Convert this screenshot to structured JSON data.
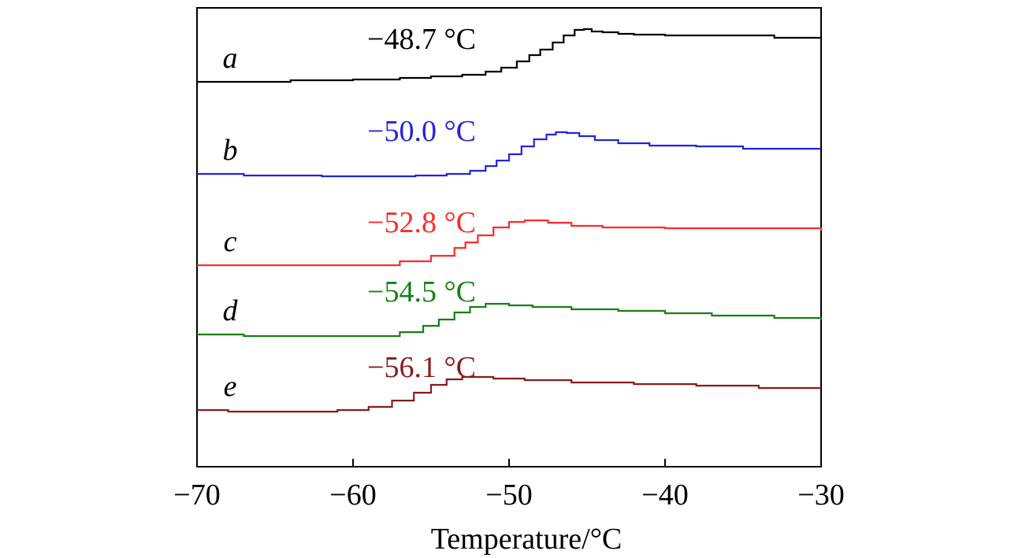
{
  "chart_data": {
    "type": "line",
    "title": "",
    "xlabel": "Temperature/°C",
    "ylabel": "",
    "xlim": [
      -70,
      -30
    ],
    "x_ticks": [
      -70,
      -60,
      -50,
      -40,
      -30
    ],
    "x_tick_labels": [
      "−70",
      "−60",
      "−50",
      "−40",
      "−30"
    ],
    "y_ticks": [],
    "grid": false,
    "legend": "none",
    "series": [
      {
        "name": "a",
        "annotation": "−48.7 °C",
        "color": "#000000",
        "x": [
          -70,
          -68,
          -64,
          -60,
          -57,
          -55,
          -53,
          -51.5,
          -50.5,
          -49.5,
          -48.7,
          -48,
          -47.2,
          -46.5,
          -45.8,
          -45.2,
          -44.7,
          -44,
          -43,
          -42,
          -40,
          -36,
          -33,
          -30
        ],
        "y": [
          2.53,
          2.53,
          2.55,
          2.56,
          2.58,
          2.6,
          2.62,
          2.66,
          2.71,
          2.79,
          2.87,
          2.94,
          3.03,
          3.12,
          3.19,
          3.2,
          3.17,
          3.16,
          3.14,
          3.13,
          3.12,
          3.12,
          3.09,
          3.09
        ]
      },
      {
        "name": "b",
        "annotation": "−50.0 °C",
        "color": "#2323e0",
        "x": [
          -70,
          -67,
          -62,
          -58,
          -56,
          -54,
          -52.5,
          -51.5,
          -50.8,
          -50,
          -49.2,
          -48.4,
          -47.6,
          -47,
          -46.3,
          -45.5,
          -44.5,
          -43,
          -41,
          -38,
          -35,
          -30
        ],
        "y": [
          1.36,
          1.34,
          1.33,
          1.33,
          1.34,
          1.36,
          1.4,
          1.46,
          1.53,
          1.61,
          1.71,
          1.8,
          1.86,
          1.89,
          1.88,
          1.84,
          1.79,
          1.75,
          1.72,
          1.71,
          1.68,
          1.68
        ]
      },
      {
        "name": "c",
        "annotation": "−52.8 °C",
        "color": "#ff2a2a",
        "x": [
          -70,
          -64,
          -59,
          -57,
          -55,
          -53.5,
          -52.8,
          -52,
          -51,
          -50,
          -49,
          -48.5,
          -47.5,
          -46,
          -44,
          -40,
          -36,
          -30
        ],
        "y": [
          0.2,
          0.2,
          0.2,
          0.25,
          0.32,
          0.42,
          0.49,
          0.58,
          0.68,
          0.75,
          0.77,
          0.77,
          0.74,
          0.7,
          0.68,
          0.67,
          0.67,
          0.64
        ]
      },
      {
        "name": "d",
        "annotation": "−54.5 °C",
        "color": "#158015",
        "x": [
          -70,
          -67,
          -62,
          -59,
          -57,
          -55.5,
          -54.5,
          -53.5,
          -52.5,
          -51.5,
          -50.8,
          -50,
          -48.5,
          -46,
          -43,
          -40,
          -37,
          -33,
          -30
        ],
        "y": [
          -0.68,
          -0.7,
          -0.7,
          -0.7,
          -0.65,
          -0.57,
          -0.49,
          -0.4,
          -0.33,
          -0.29,
          -0.29,
          -0.31,
          -0.33,
          -0.36,
          -0.38,
          -0.41,
          -0.44,
          -0.47,
          -0.49
        ]
      },
      {
        "name": "e",
        "annotation": "−56.1 °C",
        "color": "#8b1a1a",
        "x": [
          -70,
          -68,
          -64,
          -61,
          -59,
          -57.5,
          -56.1,
          -55,
          -54,
          -53,
          -52,
          -51,
          -49,
          -46,
          -42,
          -38,
          -34,
          -30
        ],
        "y": [
          -1.64,
          -1.66,
          -1.66,
          -1.64,
          -1.6,
          -1.52,
          -1.42,
          -1.32,
          -1.25,
          -1.22,
          -1.22,
          -1.24,
          -1.26,
          -1.29,
          -1.31,
          -1.33,
          -1.36,
          -1.36
        ]
      }
    ]
  }
}
